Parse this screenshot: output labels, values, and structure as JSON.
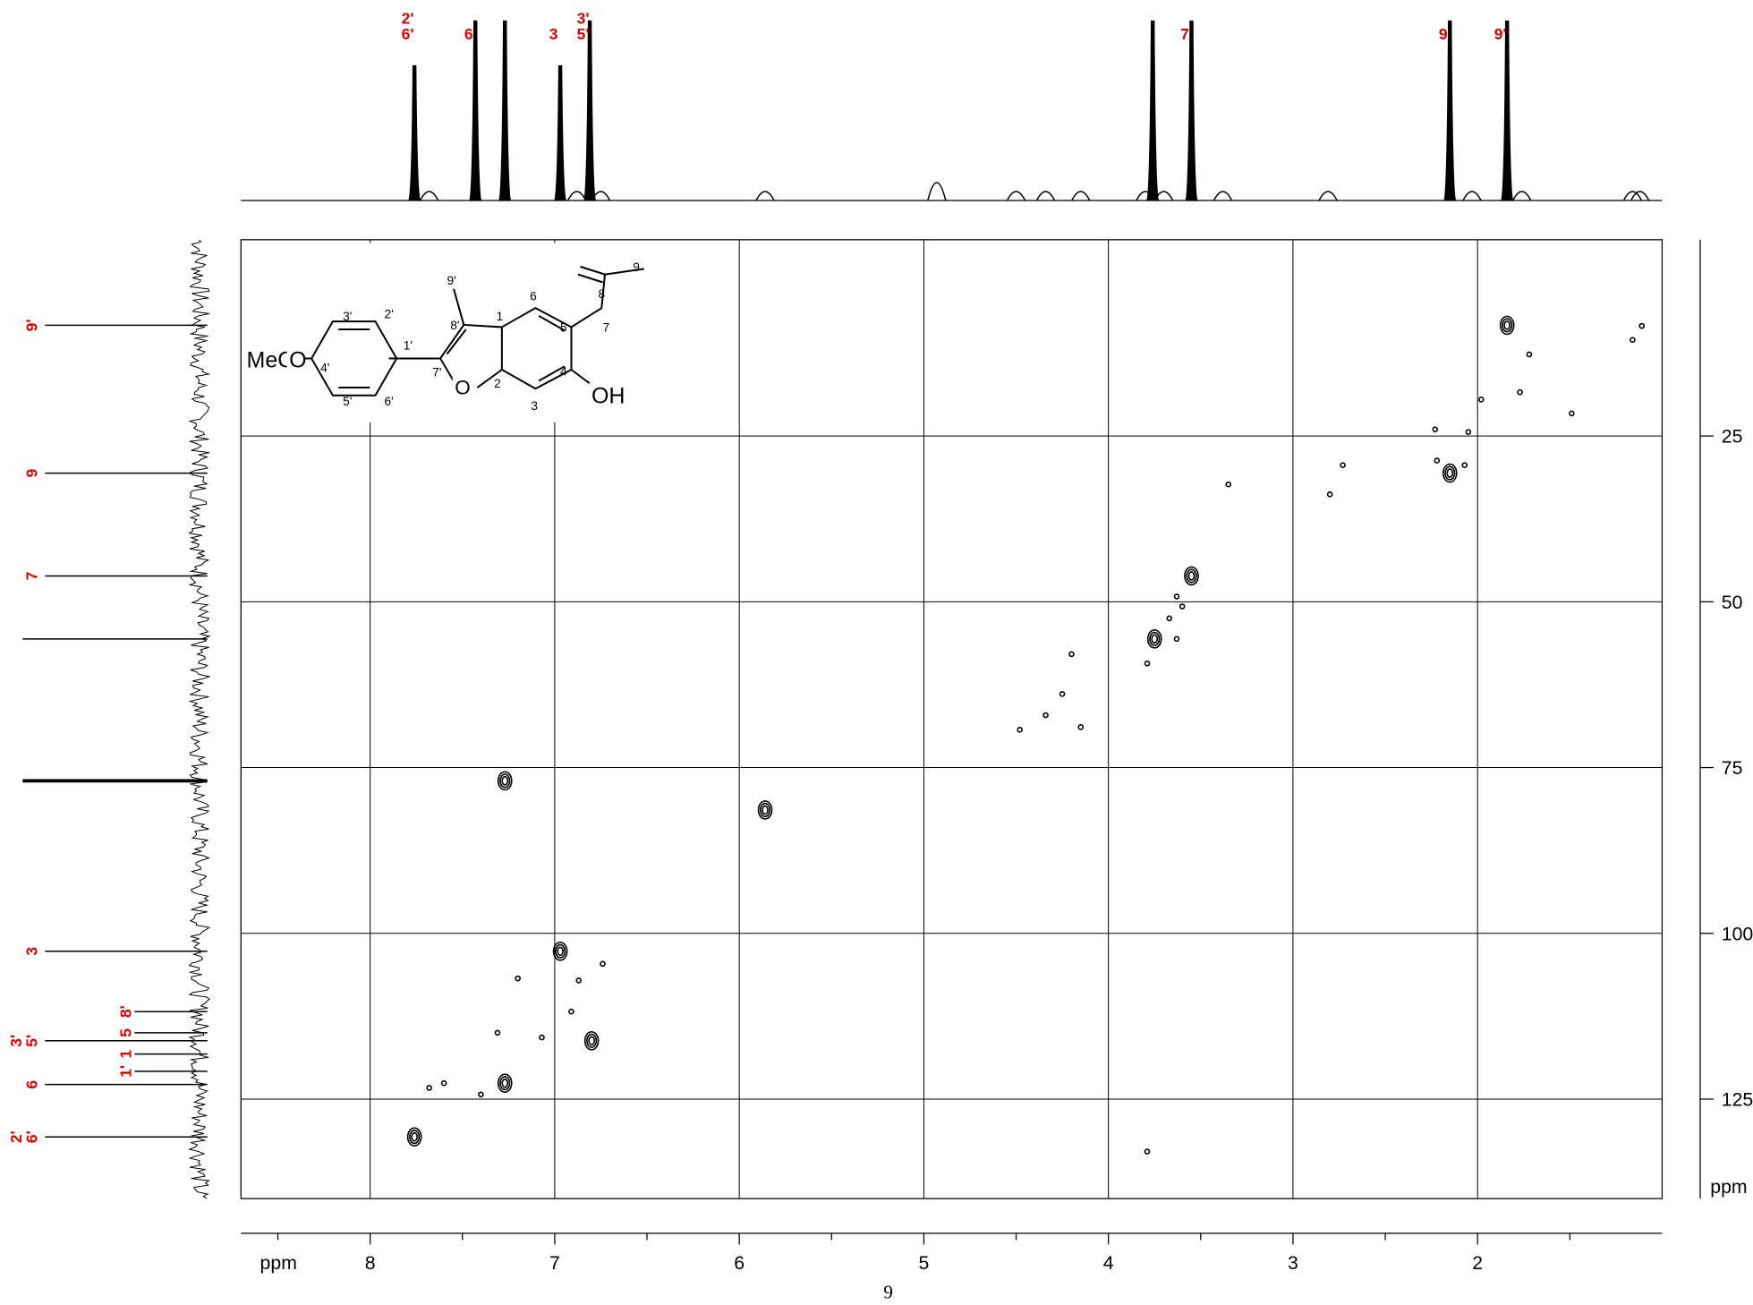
{
  "page_number": "9",
  "chart_data": {
    "type": "hsqc",
    "xlabel": "ppm",
    "ylabel": "ppm",
    "xlim": [
      8.7,
      1.0
    ],
    "xticks": [
      8,
      7,
      6,
      5,
      4,
      3,
      2
    ],
    "xminorticks": [
      8.5,
      7.5,
      6.5,
      5.5,
      4.5,
      3.5,
      2.5,
      1.5
    ],
    "ylim": [
      -4.6,
      140
    ],
    "yticks": [
      25,
      50,
      75,
      100,
      125
    ],
    "grid": true,
    "label_color": "#e00000",
    "cross_peaks": {
      "x": [
        7.76,
        7.27,
        7.27,
        6.97,
        6.8,
        3.55,
        3.75,
        2.15,
        1.84,
        5.86
      ],
      "y": [
        130.7,
        77.0,
        122.6,
        102.7,
        116.2,
        46.1,
        55.6,
        30.6,
        8.3,
        81.4
      ]
    },
    "minor_cross_peaks": {
      "x": [
        2.23,
        2.05,
        1.98,
        1.77,
        1.49,
        1.72,
        1.16,
        1.11,
        2.22,
        2.07,
        2.73,
        2.8,
        3.35,
        3.63,
        3.6,
        3.67,
        3.63,
        3.79,
        4.2,
        4.25,
        4.34,
        4.48,
        4.15,
        7.2,
        6.87,
        6.74,
        6.91,
        7.31,
        7.07,
        7.6,
        7.68,
        7.4,
        3.79
      ],
      "y": [
        24.0,
        24.4,
        19.5,
        18.4,
        21.6,
        12.7,
        10.5,
        8.4,
        28.7,
        29.4,
        29.4,
        33.8,
        32.3,
        49.2,
        50.7,
        52.5,
        55.6,
        59.3,
        57.9,
        63.9,
        67.1,
        69.3,
        68.9,
        106.8,
        107.1,
        104.6,
        111.8,
        115.0,
        115.7,
        122.6,
        123.3,
        124.3,
        132.9
      ]
    },
    "h1_peaks": [
      {
        "shift": 7.76,
        "label": [
          "2'",
          "6'"
        ]
      },
      {
        "shift": 7.43,
        "label": [
          "6"
        ]
      },
      {
        "shift": 7.27
      },
      {
        "shift": 6.97,
        "label": [
          "3"
        ]
      },
      {
        "shift": 6.81,
        "label": [
          "3'",
          "5'"
        ]
      },
      {
        "shift": 3.76
      },
      {
        "shift": 3.55,
        "label": [
          "7"
        ]
      },
      {
        "shift": 2.15,
        "label": [
          "9"
        ]
      },
      {
        "shift": 1.84,
        "label": [
          "9'"
        ]
      }
    ],
    "h1_minor_peaks": [
      7.68,
      6.88,
      6.75,
      5.86,
      4.93,
      4.5,
      4.34,
      4.15,
      3.8,
      3.7,
      3.38,
      2.81,
      2.03,
      1.76,
      1.16,
      1.12
    ],
    "c13_peaks": [
      {
        "shift": 8.3,
        "label": [
          "9'"
        ]
      },
      {
        "shift": 30.6,
        "label": [
          "9"
        ]
      },
      {
        "shift": 46.1,
        "label": [
          "7"
        ]
      },
      {
        "shift": 55.6
      },
      {
        "shift": 77.0
      },
      {
        "shift": 102.7,
        "label": [
          "3"
        ]
      },
      {
        "shift": 111.8,
        "label": [
          "8'"
        ]
      },
      {
        "shift": 115.0,
        "label": [
          "5"
        ]
      },
      {
        "shift": 116.2,
        "label": [
          "3'",
          "5'"
        ]
      },
      {
        "shift": 118.2,
        "label": [
          "1"
        ]
      },
      {
        "shift": 120.8,
        "label": [
          "1'"
        ]
      },
      {
        "shift": 122.8,
        "label": [
          "6"
        ]
      },
      {
        "shift": 130.7,
        "label": [
          "2'",
          "6'"
        ]
      }
    ]
  },
  "structure_labels": [
    "MeO",
    "O",
    "O",
    "OH",
    "1",
    "2",
    "3",
    "4",
    "5",
    "6",
    "7",
    "8",
    "9",
    "1'",
    "2'",
    "3'",
    "4'",
    "5'",
    "6'",
    "7'",
    "8'",
    "9'"
  ]
}
